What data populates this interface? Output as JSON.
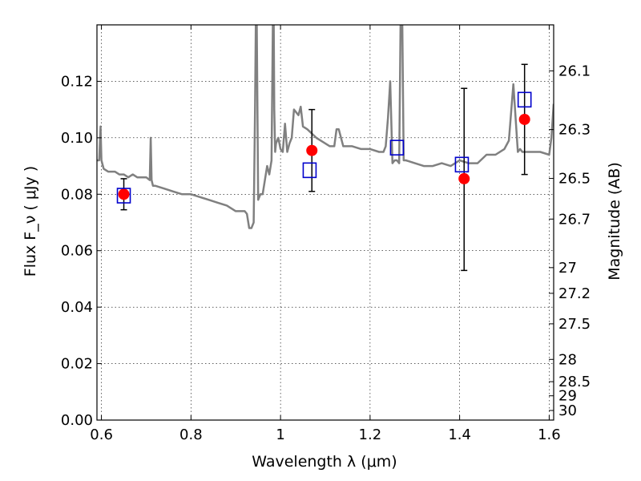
{
  "chart_data": {
    "type": "scatter",
    "xlabel": "Wavelength  λ (μm)",
    "ylabel": "Flux  F_ν  ( μJy )",
    "y2label": "Magnitude (AB)",
    "xlim": [
      0.59,
      1.61
    ],
    "ylim": [
      0.0,
      0.14
    ],
    "grid": true,
    "x_ticks": [
      0.6,
      0.8,
      1.0,
      1.2,
      1.4,
      1.6
    ],
    "x_tick_labels": [
      "0.6",
      "0.8",
      "1",
      "1.2",
      "1.4",
      "1.6"
    ],
    "y_ticks": [
      0.0,
      0.02,
      0.04,
      0.06,
      0.08,
      0.1,
      0.12
    ],
    "y_tick_labels": [
      "0.00",
      "0.02",
      "0.04",
      "0.06",
      "0.08",
      "0.10",
      "0.12"
    ],
    "y2_ticks": [
      {
        "label": "26.1",
        "flux": 0.1237
      },
      {
        "label": "26.3",
        "flux": 0.1029
      },
      {
        "label": "26.5",
        "flux": 0.0856
      },
      {
        "label": "26.7",
        "flux": 0.0712
      },
      {
        "label": "27",
        "flux": 0.054
      },
      {
        "label": "27.2",
        "flux": 0.0449
      },
      {
        "label": "27.5",
        "flux": 0.0341
      },
      {
        "label": "28",
        "flux": 0.0215
      },
      {
        "label": "28.5",
        "flux": 0.0136
      },
      {
        "label": "29",
        "flux": 0.0086
      },
      {
        "label": "30",
        "flux": 0.0034
      }
    ],
    "series": [
      {
        "kind": "model_spectrum",
        "color": "#808080",
        "x": [
          0.59,
          0.595,
          0.598,
          0.6,
          0.605,
          0.615,
          0.63,
          0.64,
          0.65,
          0.66,
          0.67,
          0.68,
          0.69,
          0.7,
          0.708,
          0.71,
          0.712,
          0.715,
          0.72,
          0.74,
          0.76,
          0.78,
          0.8,
          0.82,
          0.84,
          0.86,
          0.88,
          0.9,
          0.91,
          0.92,
          0.925,
          0.93,
          0.935,
          0.94,
          0.943,
          0.946,
          0.95,
          0.955,
          0.96,
          0.965,
          0.97,
          0.975,
          0.98,
          0.984,
          0.986,
          0.988,
          0.99,
          0.995,
          1.0,
          1.005,
          1.01,
          1.015,
          1.02,
          1.025,
          1.03,
          1.04,
          1.045,
          1.05,
          1.06,
          1.08,
          1.1,
          1.11,
          1.12,
          1.125,
          1.13,
          1.14,
          1.16,
          1.18,
          1.2,
          1.22,
          1.23,
          1.235,
          1.24,
          1.245,
          1.25,
          1.255,
          1.26,
          1.265,
          1.268,
          1.27,
          1.272,
          1.275,
          1.28,
          1.3,
          1.32,
          1.34,
          1.36,
          1.38,
          1.4,
          1.42,
          1.44,
          1.46,
          1.48,
          1.5,
          1.51,
          1.52,
          1.53,
          1.535,
          1.54,
          1.56,
          1.58,
          1.6,
          1.605,
          1.61
        ],
        "y": [
          0.092,
          0.092,
          0.104,
          0.092,
          0.089,
          0.088,
          0.088,
          0.087,
          0.087,
          0.086,
          0.087,
          0.086,
          0.086,
          0.086,
          0.085,
          0.1,
          0.085,
          0.083,
          0.083,
          0.082,
          0.081,
          0.08,
          0.08,
          0.079,
          0.078,
          0.077,
          0.076,
          0.074,
          0.074,
          0.074,
          0.073,
          0.068,
          0.068,
          0.07,
          0.11,
          0.16,
          0.078,
          0.08,
          0.08,
          0.085,
          0.09,
          0.087,
          0.092,
          0.16,
          0.11,
          0.095,
          0.098,
          0.1,
          0.096,
          0.095,
          0.105,
          0.095,
          0.098,
          0.1,
          0.11,
          0.108,
          0.111,
          0.104,
          0.103,
          0.1,
          0.098,
          0.097,
          0.097,
          0.103,
          0.103,
          0.097,
          0.097,
          0.096,
          0.096,
          0.095,
          0.095,
          0.097,
          0.107,
          0.12,
          0.091,
          0.092,
          0.092,
          0.091,
          0.14,
          0.16,
          0.14,
          0.092,
          0.092,
          0.091,
          0.09,
          0.09,
          0.091,
          0.09,
          0.092,
          0.091,
          0.091,
          0.094,
          0.094,
          0.096,
          0.099,
          0.119,
          0.095,
          0.096,
          0.095,
          0.095,
          0.095,
          0.094,
          0.1,
          0.112
        ]
      },
      {
        "kind": "measured_flux",
        "marker": "circle",
        "color": "#ff0000",
        "x": [
          0.65,
          1.07,
          1.41,
          1.545
        ],
        "y": [
          0.08,
          0.0955,
          0.0855,
          0.1065
        ],
        "yerr_low": [
          0.0055,
          0.0145,
          0.0325,
          0.0195
        ],
        "yerr_high": [
          0.0055,
          0.0145,
          0.032,
          0.0195
        ]
      },
      {
        "kind": "model_photometry",
        "marker": "open-square",
        "color": "#0000cc",
        "x": [
          0.65,
          1.065,
          1.26,
          1.405,
          1.545
        ],
        "y": [
          0.0795,
          0.0885,
          0.0965,
          0.0905,
          0.1135
        ]
      }
    ]
  }
}
